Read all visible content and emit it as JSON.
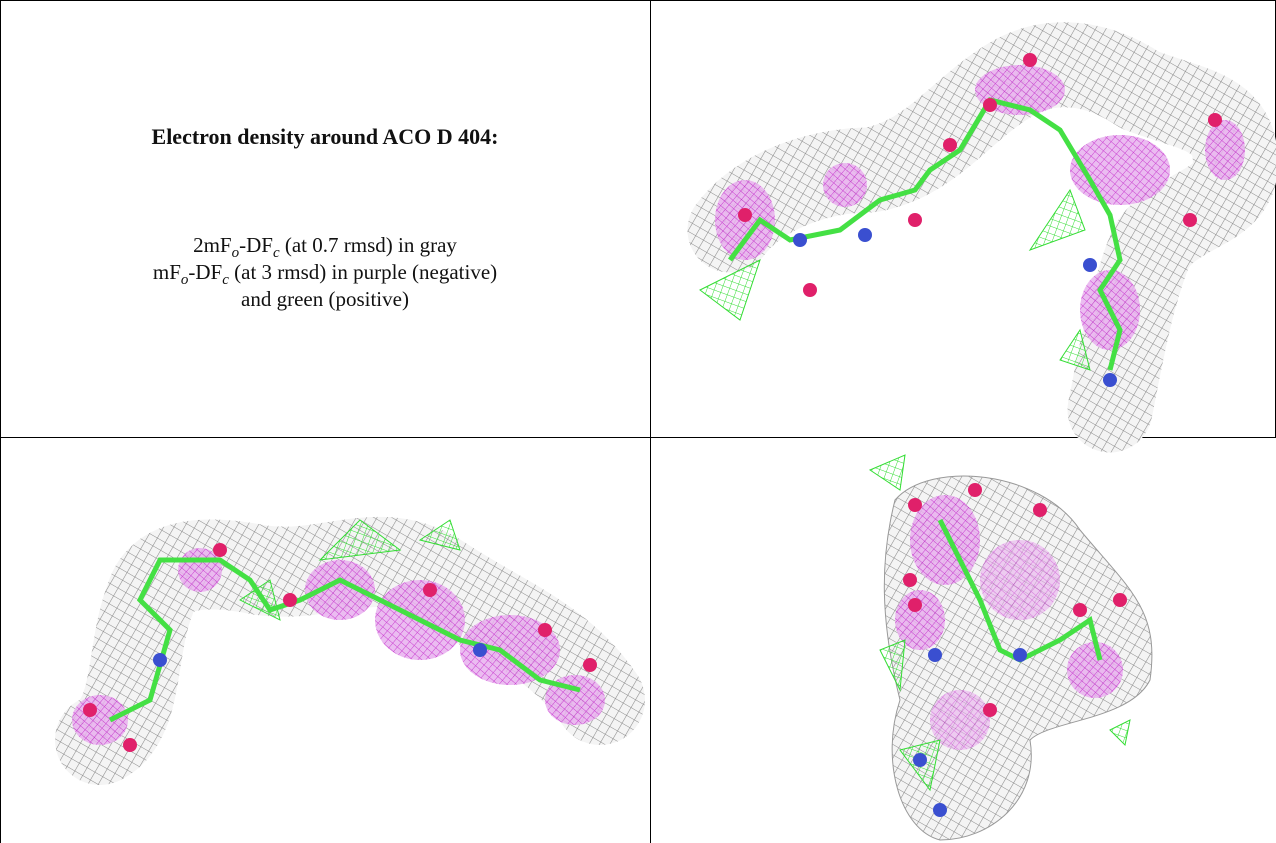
{
  "caption": {
    "title": "Electron density around ACO D 404:",
    "lines": [
      [
        "2mF",
        "o",
        "-DF",
        "c",
        " (at 0.7 rmsd) in gray"
      ],
      [
        "mF",
        "o",
        "-DF",
        "c",
        " (at 3 rmsd) in purple (negative)"
      ],
      [
        "and green (positive)"
      ]
    ]
  }
}
